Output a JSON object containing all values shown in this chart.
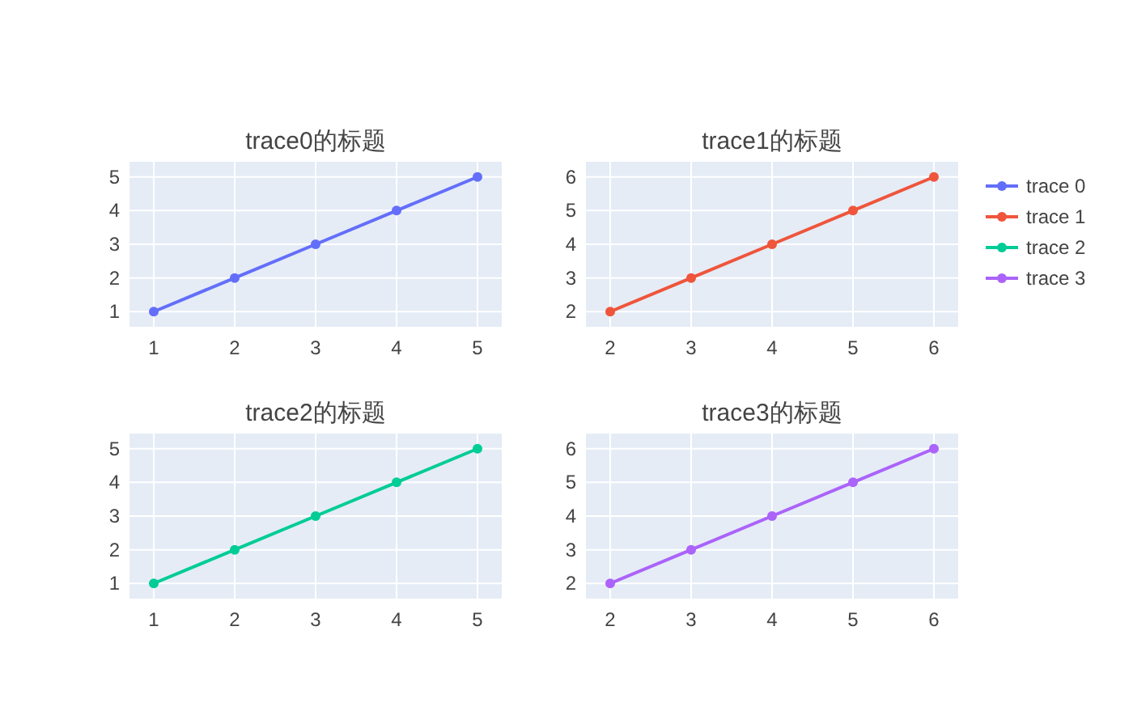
{
  "chart_data": [
    {
      "type": "line",
      "title": "trace0的标题",
      "x": [
        1,
        2,
        3,
        4,
        5
      ],
      "series": [
        {
          "name": "trace 0",
          "color": "#636efa",
          "values": [
            1,
            2,
            3,
            4,
            5
          ]
        }
      ],
      "xlim": [
        0.7,
        5.3
      ],
      "ylim": [
        0.55,
        5.45
      ],
      "xticks": [
        1,
        2,
        3,
        4,
        5
      ],
      "yticks": [
        1,
        2,
        3,
        4,
        5
      ],
      "grid": true,
      "marker": "circle",
      "line_style": "solid",
      "legend": "right"
    },
    {
      "type": "line",
      "title": "trace1的标题",
      "x": [
        2,
        3,
        4,
        5,
        6
      ],
      "series": [
        {
          "name": "trace 1",
          "color": "#ef553b",
          "values": [
            2,
            3,
            4,
            5,
            6
          ]
        }
      ],
      "xlim": [
        1.7,
        6.3
      ],
      "ylim": [
        1.55,
        6.45
      ],
      "xticks": [
        2,
        3,
        4,
        5,
        6
      ],
      "yticks": [
        2,
        3,
        4,
        5,
        6
      ],
      "grid": true,
      "marker": "circle",
      "line_style": "solid",
      "legend": "right"
    },
    {
      "type": "line",
      "title": "trace2的标题",
      "x": [
        1,
        2,
        3,
        4,
        5
      ],
      "series": [
        {
          "name": "trace 2",
          "color": "#00cc96",
          "values": [
            1,
            2,
            3,
            4,
            5
          ]
        }
      ],
      "xlim": [
        0.7,
        5.3
      ],
      "ylim": [
        0.55,
        5.45
      ],
      "xticks": [
        1,
        2,
        3,
        4,
        5
      ],
      "yticks": [
        1,
        2,
        3,
        4,
        5
      ],
      "grid": true,
      "marker": "circle",
      "line_style": "solid",
      "legend": "right"
    },
    {
      "type": "line",
      "title": "trace3的标题",
      "x": [
        2,
        3,
        4,
        5,
        6
      ],
      "series": [
        {
          "name": "trace 3",
          "color": "#ab63fa",
          "values": [
            2,
            3,
            4,
            5,
            6
          ]
        }
      ],
      "xlim": [
        1.7,
        6.3
      ],
      "ylim": [
        1.55,
        6.45
      ],
      "xticks": [
        2,
        3,
        4,
        5,
        6
      ],
      "yticks": [
        2,
        3,
        4,
        5,
        6
      ],
      "grid": true,
      "marker": "circle",
      "line_style": "solid",
      "legend": "right"
    }
  ]
}
